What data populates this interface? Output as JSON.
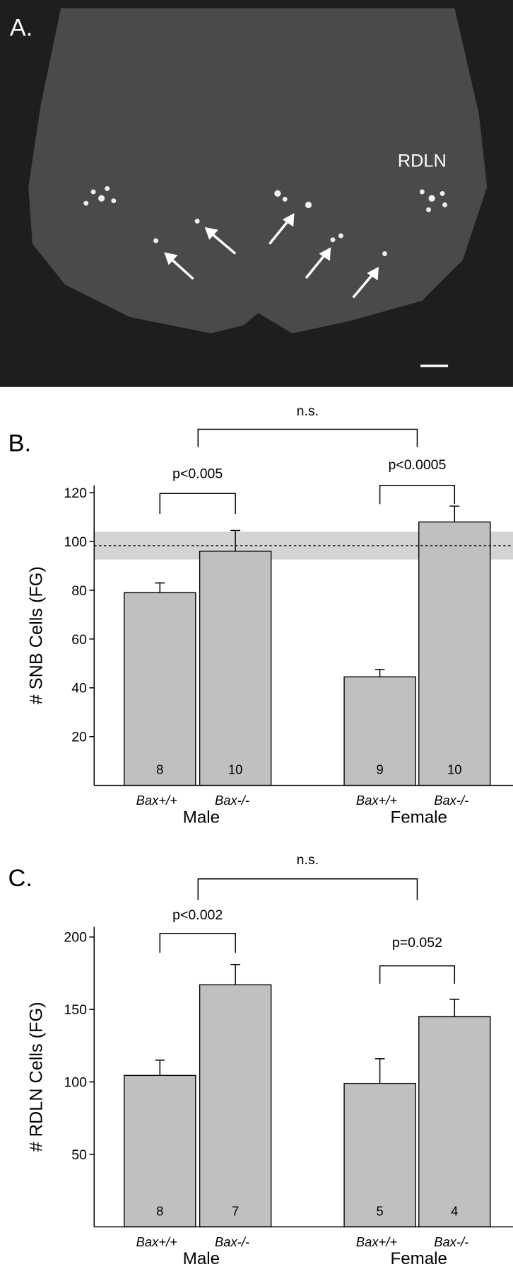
{
  "panel_a": {
    "label": "A.",
    "annotation": "RDLN"
  },
  "chart_data": [
    {
      "type": "bar",
      "panel_label": "B.",
      "y_label": "# SNB Cells (FG)",
      "categories": [
        "Bax+/+",
        "Bax-/-",
        "Bax+/+",
        "Bax-/-"
      ],
      "groups": [
        "Male",
        "Female"
      ],
      "values": [
        79,
        96,
        44.5,
        108
      ],
      "errors": [
        4,
        8.5,
        3,
        6.5
      ],
      "n": [
        8,
        10,
        9,
        10
      ],
      "color": "#c0c0c0",
      "reference": {
        "value": 98.3,
        "range": [
          92.6,
          104
        ]
      },
      "annotations": [
        "p<0.005",
        "p<0.0005",
        "n.s."
      ],
      "ylim": [
        0,
        123
      ],
      "yticks": [
        20,
        40,
        60,
        80,
        100,
        120
      ]
    },
    {
      "type": "bar",
      "panel_label": "C.",
      "y_label": "# RDLN Cells (FG)",
      "categories": [
        "Bax+/+",
        "Bax-/-",
        "Bax+/+",
        "Bax-/-"
      ],
      "groups": [
        "Male",
        "Female"
      ],
      "values": [
        104.5,
        167,
        99,
        145
      ],
      "errors": [
        10.5,
        14,
        17,
        12
      ],
      "n": [
        8,
        7,
        5,
        4
      ],
      "color": "#c0c0c0",
      "annotations": [
        "p<0.002",
        "p=0.052",
        "n.s."
      ],
      "ylim": [
        0,
        207
      ],
      "yticks": [
        50,
        100,
        150,
        200
      ]
    }
  ]
}
